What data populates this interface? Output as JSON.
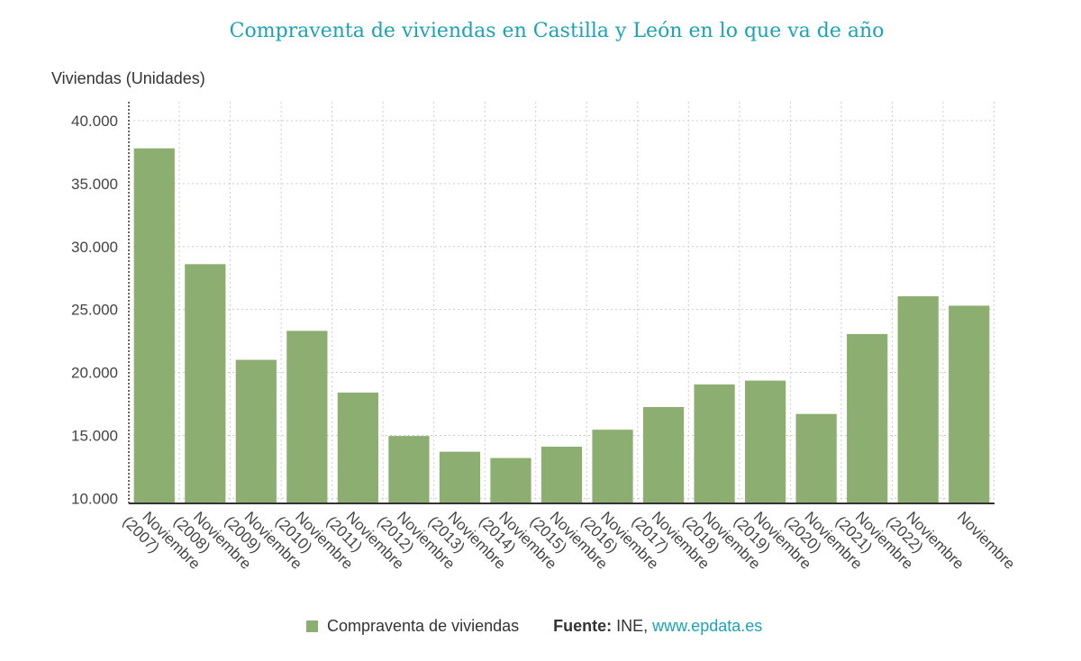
{
  "title": "Compraventa de viviendas en Castilla y León en lo que va de año",
  "colors": {
    "bar": "#8caf71",
    "title": "#1aa3b4",
    "grid": "#cccccc",
    "axis": "#333333",
    "link": "#1aa3b4"
  },
  "legend": {
    "series_label": "Compraventa de viviendas",
    "source_label": "Fuente:",
    "source_value": "INE,",
    "source_link": "www.epdata.es"
  },
  "chart_data": {
    "type": "bar",
    "ylabel": "Viviendas (Unidades)",
    "ylim": [
      10000,
      40000
    ],
    "yticks": [
      10000,
      15000,
      20000,
      25000,
      30000,
      35000,
      40000
    ],
    "ytick_labels": [
      "10.000",
      "15.000",
      "20.000",
      "25.000",
      "30.000",
      "35.000",
      "40.000"
    ],
    "grid": true,
    "legend_position": "bottom",
    "categories": [
      [
        "Noviembre",
        "(2007)"
      ],
      [
        "Noviembre",
        "(2008)"
      ],
      [
        "Noviembre",
        "(2009)"
      ],
      [
        "Noviembre",
        "(2010)"
      ],
      [
        "Noviembre",
        "(2011)"
      ],
      [
        "Noviembre",
        "(2012)"
      ],
      [
        "Noviembre",
        "(2013)"
      ],
      [
        "Noviembre",
        "(2014)"
      ],
      [
        "Noviembre",
        "(2015)"
      ],
      [
        "Noviembre",
        "(2016)"
      ],
      [
        "Noviembre",
        "(2017)"
      ],
      [
        "Noviembre",
        "(2018)"
      ],
      [
        "Noviembre",
        "(2019)"
      ],
      [
        "Noviembre",
        "(2020)"
      ],
      [
        "Noviembre",
        "(2021)"
      ],
      [
        "Noviembre",
        "(2022)"
      ],
      [
        "Noviembre"
      ]
    ],
    "series": [
      {
        "name": "Compraventa de viviendas",
        "values": [
          37800,
          28600,
          21000,
          23300,
          18400,
          14950,
          13700,
          13200,
          14100,
          15450,
          17250,
          19050,
          19350,
          16700,
          23050,
          26050,
          25300
        ]
      }
    ]
  }
}
